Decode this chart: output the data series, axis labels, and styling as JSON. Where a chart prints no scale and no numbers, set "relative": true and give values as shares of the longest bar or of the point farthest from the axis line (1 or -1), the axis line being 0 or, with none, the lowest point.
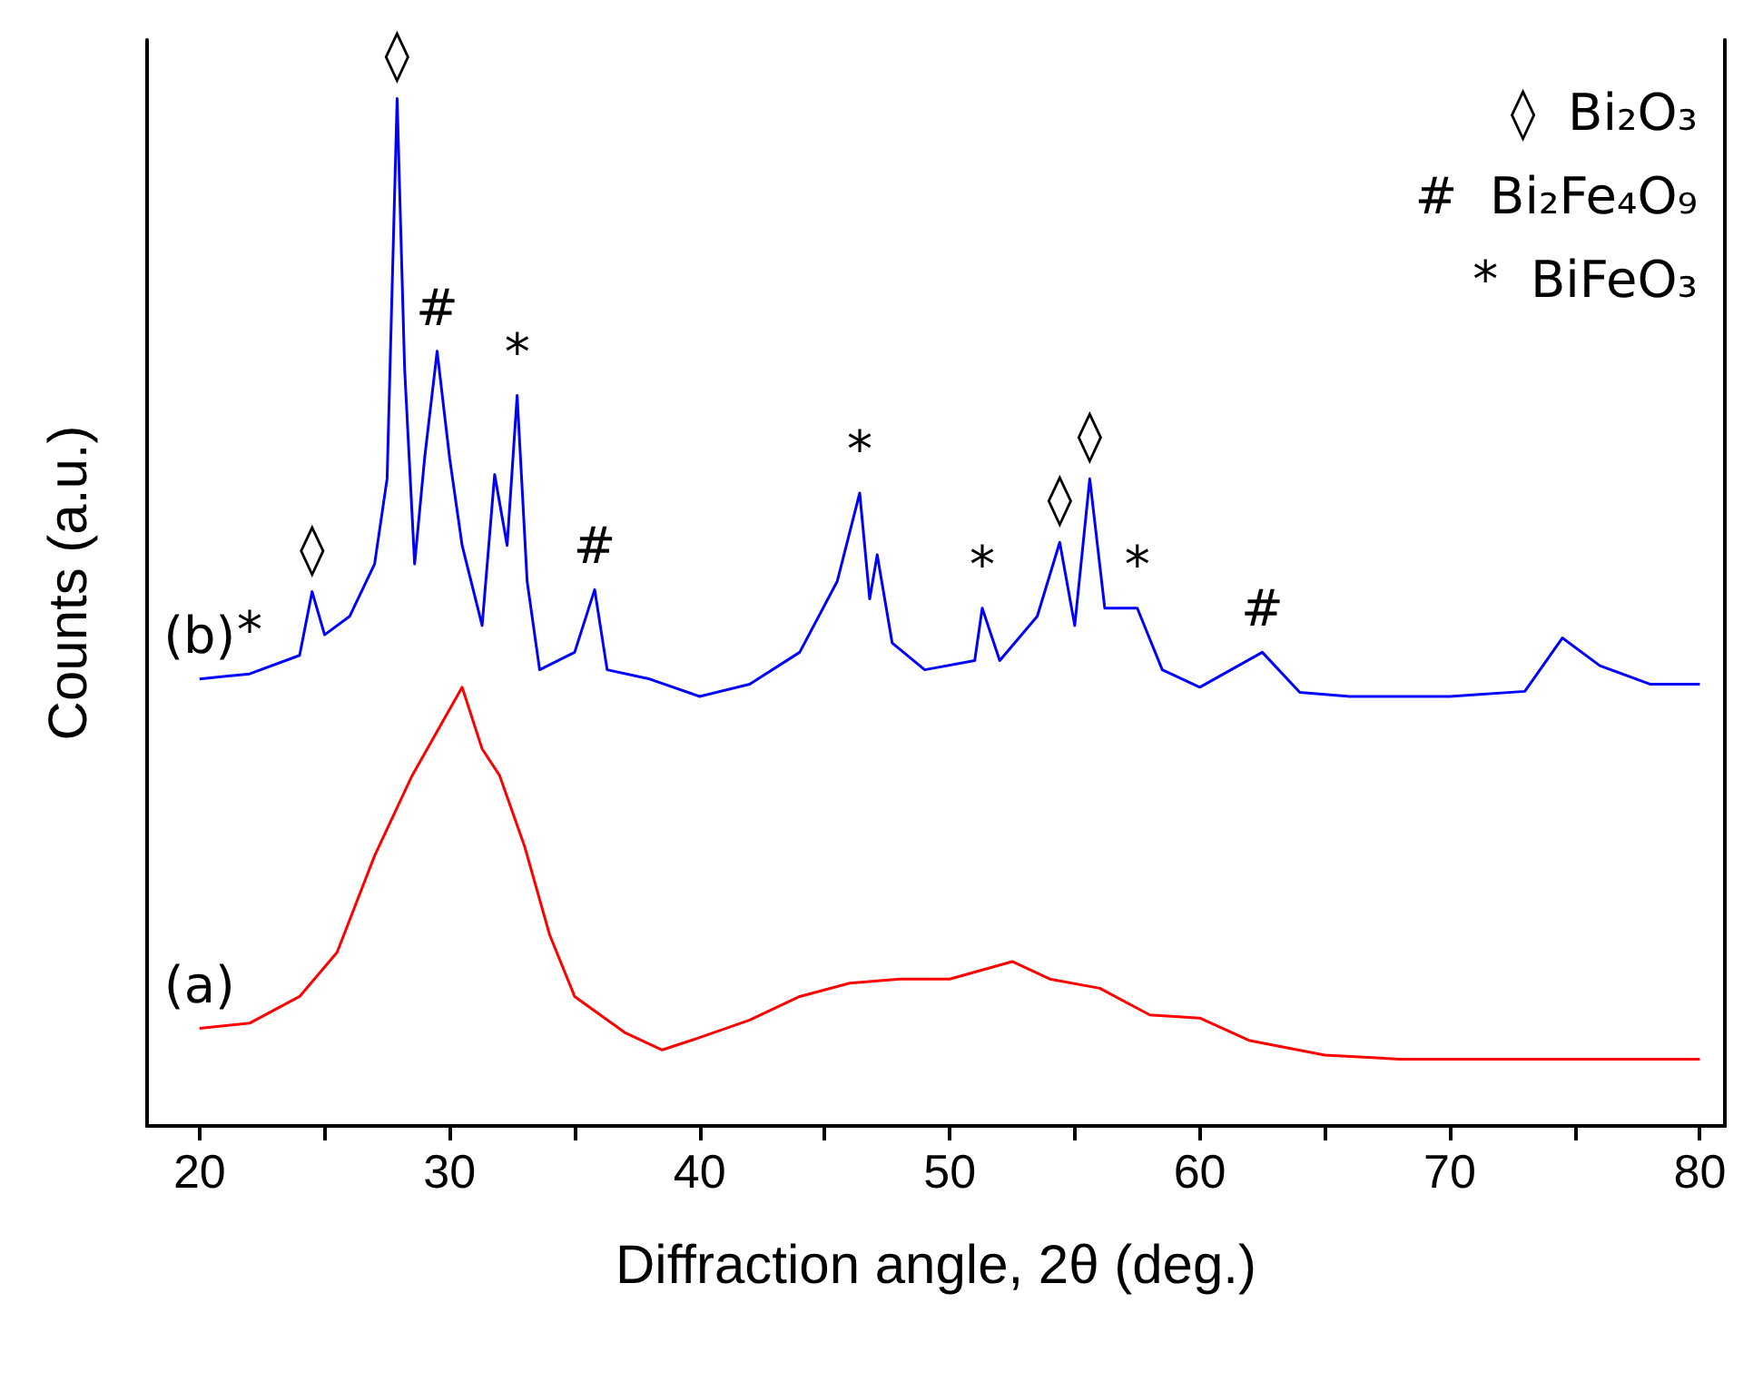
{
  "chart_data": {
    "type": "line",
    "relative": true,
    "xlabel": "Diffraction angle, 2θ (deg.)",
    "ylabel": "Counts (a.u.)",
    "xlim": [
      17.9,
      81
    ],
    "xticks": [
      20,
      {
        "value": 25,
        "label": null
      },
      30,
      {
        "value": 35,
        "label": null
      },
      40,
      {
        "value": 45,
        "label": null
      },
      50,
      {
        "value": 55,
        "label": null
      },
      60,
      {
        "value": 65,
        "label": null
      },
      70,
      {
        "value": 75,
        "label": null
      },
      80
    ],
    "grid": false,
    "marker": "none",
    "line_style": "solid",
    "series": [
      {
        "color": "#0000ff",
        "x": [
          20,
          22,
          24,
          24.5,
          25,
          26,
          27,
          27.5,
          27.9,
          28.2,
          28.6,
          29,
          29.5,
          30,
          30.5,
          31.3,
          31.8,
          32.3,
          32.7,
          33.1,
          33.6,
          35,
          35.8,
          36.3,
          38,
          40,
          42,
          44,
          45.5,
          46.4,
          46.8,
          47.1,
          47.7,
          49,
          51,
          51.3,
          52,
          53.5,
          54.4,
          55,
          55.6,
          56.2,
          57.5,
          58.5,
          60,
          62.5,
          64,
          66,
          70,
          73,
          74.5,
          76,
          78,
          80
        ],
        "values": [
          0.435,
          0.44,
          0.458,
          0.52,
          0.478,
          0.496,
          0.547,
          0.63,
          1,
          0.737,
          0.547,
          0.65,
          0.754,
          0.65,
          0.565,
          0.487,
          0.634,
          0.565,
          0.711,
          0.53,
          0.444,
          0.461,
          0.522,
          0.444,
          0.435,
          0.418,
          0.43,
          0.461,
          0.53,
          0.616,
          0.513,
          0.556,
          0.47,
          0.444,
          0.453,
          0.504,
          0.453,
          0.496,
          0.568,
          0.487,
          0.63,
          0.504,
          0.504,
          0.444,
          0.427,
          0.461,
          0.422,
          0.418,
          0.418,
          0.423,
          0.475,
          0.448,
          0.43,
          0.43
        ]
      },
      {
        "color": "#ff0000",
        "x": [
          20,
          22,
          24,
          25.5,
          27,
          28.5,
          29.5,
          30.5,
          31.3,
          32,
          33,
          34,
          35,
          37,
          38.5,
          40,
          42,
          44,
          46,
          48,
          50,
          52.5,
          54,
          56,
          58,
          60,
          62,
          65,
          68,
          72,
          76,
          80
        ],
        "values": [
          0.095,
          0.1,
          0.126,
          0.169,
          0.263,
          0.341,
          0.384,
          0.427,
          0.367,
          0.341,
          0.272,
          0.186,
          0.126,
          0.091,
          0.074,
          0.086,
          0.103,
          0.126,
          0.139,
          0.143,
          0.143,
          0.16,
          0.143,
          0.134,
          0.108,
          0.105,
          0.083,
          0.069,
          0.065,
          0.065,
          0.065,
          0.065
        ]
      }
    ],
    "annotations": [
      {
        "text": "(b)",
        "x": 20,
        "y": 0.435
      },
      {
        "text": "(a)",
        "x": 20,
        "y": 0.095
      },
      {
        "text": "*",
        "x": 22,
        "y": 0.44
      },
      {
        "text": "◊",
        "x": 24.5,
        "y": 0.52
      },
      {
        "text": "◊",
        "x": 27.9,
        "y": 1
      },
      {
        "text": "#",
        "x": 29.5,
        "y": 0.754
      },
      {
        "text": "*",
        "x": 32.7,
        "y": 0.711
      },
      {
        "text": "#",
        "x": 35.8,
        "y": 0.522
      },
      {
        "text": "*",
        "x": 46.4,
        "y": 0.616
      },
      {
        "text": "*",
        "x": 51.3,
        "y": 0.504
      },
      {
        "text": "◊",
        "x": 54.4,
        "y": 0.568
      },
      {
        "text": "◊",
        "x": 55.6,
        "y": 0.63
      },
      {
        "text": "*",
        "x": 57.5,
        "y": 0.504
      },
      {
        "text": "#",
        "x": 62.5,
        "y": 0.461
      },
      "◊  Bi₂O₃",
      "#  Bi₂Fe₄O₉",
      "*  BiFeO₃"
    ]
  }
}
